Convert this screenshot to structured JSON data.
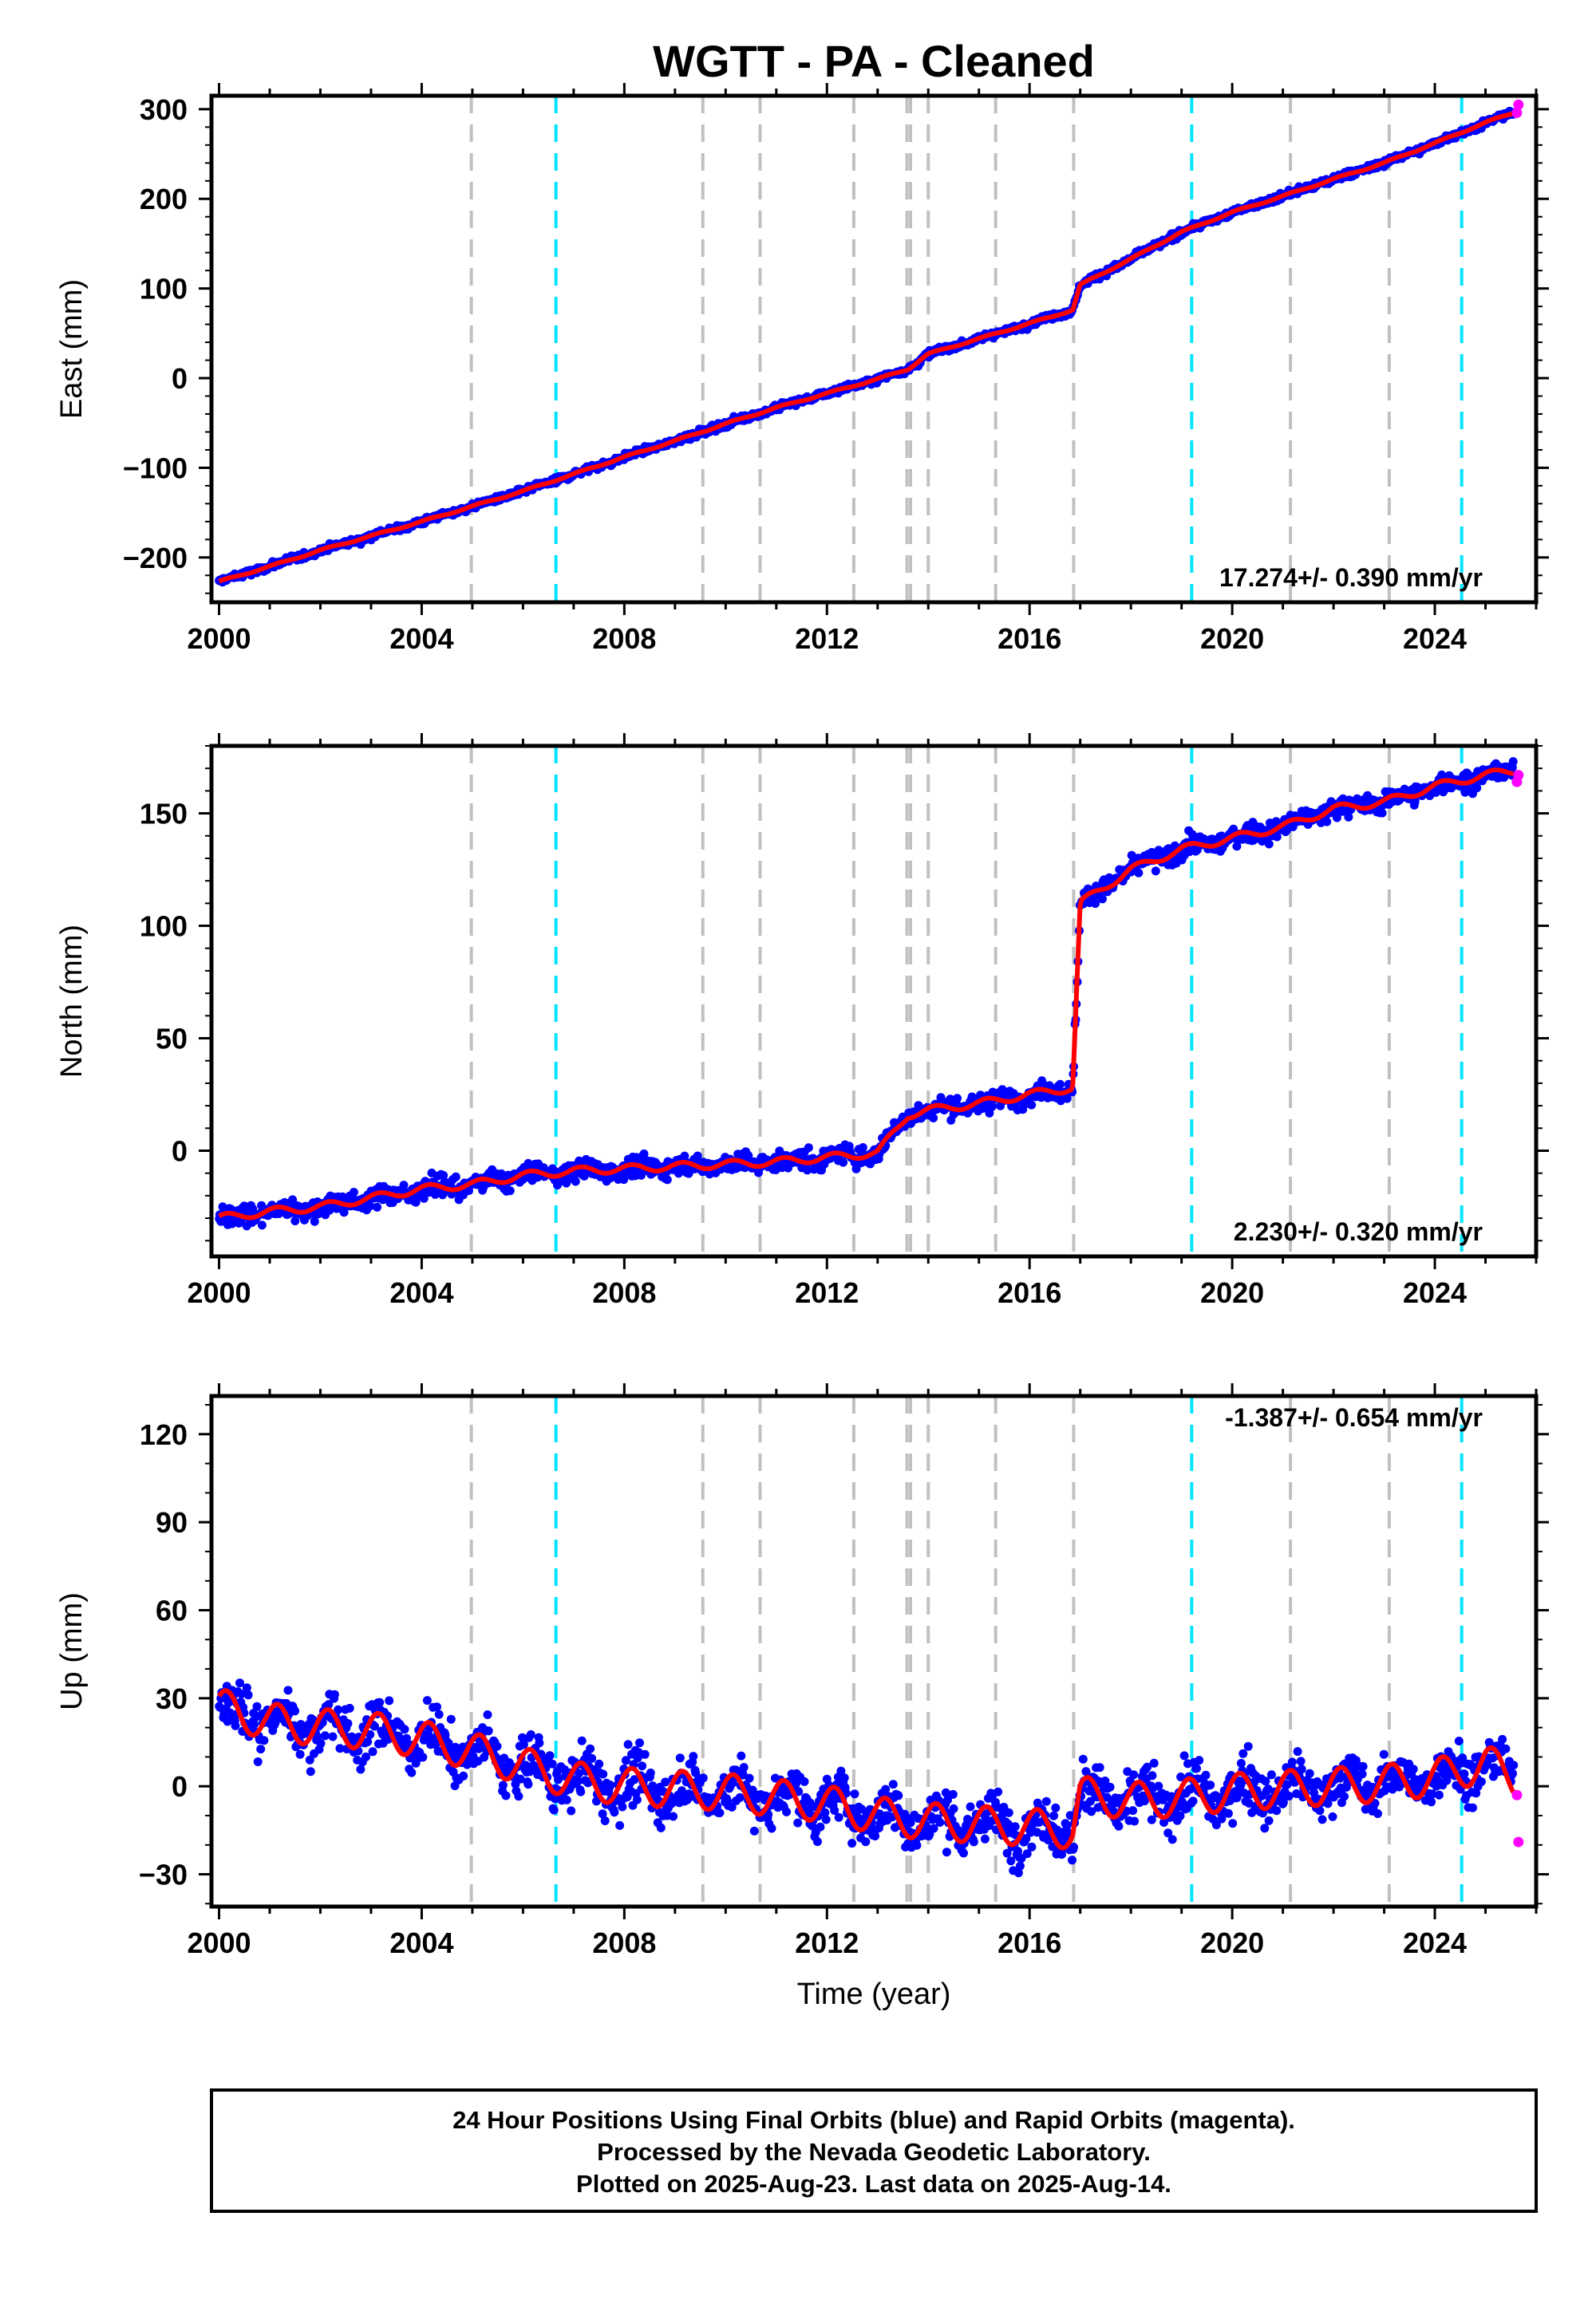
{
  "colors": {
    "final_orbits": "#0000ff",
    "rapid_orbits": "#ff00ff",
    "model": "#ff0000",
    "event_gray": "#c0c0c0",
    "event_cyan": "#00e5ff"
  },
  "chart_data": {
    "type": "scatter",
    "title": "WGTT  - PA - Cleaned",
    "x_ticks": [
      "2000",
      "2004",
      "2008",
      "2012",
      "2016",
      "2020",
      "2024"
    ],
    "xlim": [
      1999.85,
      2026.0
    ],
    "xlabel": "Time (year)",
    "event_lines_gray": [
      2004.98,
      2009.55,
      2010.68,
      2012.53,
      2013.58,
      2013.65,
      2014.0,
      2015.33,
      2016.87,
      2021.15,
      2023.1
    ],
    "event_lines_cyan": [
      2006.65,
      2019.2,
      2024.53
    ],
    "panels": [
      {
        "ylabel": "East (mm)",
        "ylim": [
          -250,
          315
        ],
        "y_ticks": [
          "300",
          "200",
          "100",
          "0",
          "−100",
          "−200"
        ],
        "rate": "17.274+/- 0.390 mm/yr",
        "final_orbits_series": [
          {
            "x": 2000.0,
            "y": -227
          },
          {
            "x": 2001.0,
            "y": -210
          },
          {
            "x": 2002.0,
            "y": -192
          },
          {
            "x": 2003.0,
            "y": -176
          },
          {
            "x": 2004.0,
            "y": -160
          },
          {
            "x": 2005.0,
            "y": -143
          },
          {
            "x": 2006.0,
            "y": -126
          },
          {
            "x": 2007.0,
            "y": -107
          },
          {
            "x": 2008.0,
            "y": -88
          },
          {
            "x": 2009.0,
            "y": -70
          },
          {
            "x": 2010.0,
            "y": -51
          },
          {
            "x": 2011.0,
            "y": -33
          },
          {
            "x": 2012.0,
            "y": -17
          },
          {
            "x": 2013.0,
            "y": -1
          },
          {
            "x": 2013.6,
            "y": 10
          },
          {
            "x": 2014.0,
            "y": 27
          },
          {
            "x": 2015.0,
            "y": 44
          },
          {
            "x": 2016.0,
            "y": 61
          },
          {
            "x": 2016.85,
            "y": 76
          },
          {
            "x": 2017.0,
            "y": 104
          },
          {
            "x": 2018.0,
            "y": 133
          },
          {
            "x": 2019.0,
            "y": 163
          },
          {
            "x": 2020.0,
            "y": 185
          },
          {
            "x": 2021.0,
            "y": 203
          },
          {
            "x": 2022.0,
            "y": 222
          },
          {
            "x": 2023.0,
            "y": 240
          },
          {
            "x": 2024.0,
            "y": 262
          },
          {
            "x": 2025.0,
            "y": 285
          },
          {
            "x": 2025.55,
            "y": 296
          }
        ],
        "rapid_orbits_series": [
          {
            "x": 2025.62,
            "y": 296
          },
          {
            "x": 2025.65,
            "y": 305
          }
        ]
      },
      {
        "ylabel": "North (mm)",
        "ylim": [
          -47,
          180
        ],
        "y_ticks": [
          "150",
          "100",
          "50",
          "0"
        ],
        "rate": "2.230+/- 0.320 mm/yr",
        "final_orbits_series": [
          {
            "x": 2000.0,
            "y": -30
          },
          {
            "x": 2001.0,
            "y": -27
          },
          {
            "x": 2002.0,
            "y": -25
          },
          {
            "x": 2003.0,
            "y": -21
          },
          {
            "x": 2004.0,
            "y": -17
          },
          {
            "x": 2005.0,
            "y": -15
          },
          {
            "x": 2006.0,
            "y": -11
          },
          {
            "x": 2007.0,
            "y": -9
          },
          {
            "x": 2008.0,
            "y": -8
          },
          {
            "x": 2009.0,
            "y": -7
          },
          {
            "x": 2010.0,
            "y": -6
          },
          {
            "x": 2011.0,
            "y": -5
          },
          {
            "x": 2012.0,
            "y": -3
          },
          {
            "x": 2013.0,
            "y": -1
          },
          {
            "x": 2013.6,
            "y": 16
          },
          {
            "x": 2014.0,
            "y": 18
          },
          {
            "x": 2015.0,
            "y": 21
          },
          {
            "x": 2016.0,
            "y": 25
          },
          {
            "x": 2016.85,
            "y": 28
          },
          {
            "x": 2017.0,
            "y": 110
          },
          {
            "x": 2018.0,
            "y": 125
          },
          {
            "x": 2019.0,
            "y": 134
          },
          {
            "x": 2020.0,
            "y": 139
          },
          {
            "x": 2021.0,
            "y": 144
          },
          {
            "x": 2022.0,
            "y": 152
          },
          {
            "x": 2023.0,
            "y": 155
          },
          {
            "x": 2024.0,
            "y": 162
          },
          {
            "x": 2025.0,
            "y": 167
          },
          {
            "x": 2025.55,
            "y": 169
          }
        ],
        "rapid_orbits_series": [
          {
            "x": 2025.62,
            "y": 164
          },
          {
            "x": 2025.65,
            "y": 167
          }
        ]
      },
      {
        "ylabel": "Up (mm)",
        "ylim": [
          -41,
          133
        ],
        "y_ticks": [
          "120",
          "90",
          "60",
          "30",
          "0",
          "−30"
        ],
        "rate": "-1.387+/- 0.654 mm/yr",
        "final_orbits_series": [
          {
            "x": 2000.0,
            "y": 27
          },
          {
            "x": 2001.0,
            "y": 22
          },
          {
            "x": 2002.0,
            "y": 20
          },
          {
            "x": 2003.0,
            "y": 19
          },
          {
            "x": 2004.0,
            "y": 16
          },
          {
            "x": 2005.0,
            "y": 12
          },
          {
            "x": 2006.0,
            "y": 7
          },
          {
            "x": 2007.0,
            "y": 2
          },
          {
            "x": 2008.0,
            "y": 0
          },
          {
            "x": 2009.0,
            "y": -1
          },
          {
            "x": 2010.0,
            "y": -2
          },
          {
            "x": 2011.0,
            "y": -4
          },
          {
            "x": 2012.0,
            "y": -6
          },
          {
            "x": 2013.0,
            "y": -10
          },
          {
            "x": 2014.0,
            "y": -12
          },
          {
            "x": 2015.0,
            "y": -13
          },
          {
            "x": 2016.0,
            "y": -14
          },
          {
            "x": 2016.85,
            "y": -15
          },
          {
            "x": 2017.0,
            "y": -3
          },
          {
            "x": 2018.0,
            "y": -5
          },
          {
            "x": 2019.0,
            "y": -4
          },
          {
            "x": 2020.0,
            "y": -2
          },
          {
            "x": 2021.0,
            "y": -1
          },
          {
            "x": 2022.0,
            "y": 0
          },
          {
            "x": 2023.0,
            "y": 1
          },
          {
            "x": 2024.0,
            "y": 3
          },
          {
            "x": 2025.0,
            "y": 8
          },
          {
            "x": 2025.55,
            "y": 3
          }
        ],
        "rapid_orbits_series": [
          {
            "x": 2025.62,
            "y": -3
          },
          {
            "x": 2025.65,
            "y": -19
          }
        ]
      }
    ]
  },
  "footer": {
    "line1": "24 Hour Positions Using Final Orbits (blue) and Rapid Orbits (magenta).",
    "line2": "Processed by the Nevada Geodetic Laboratory.",
    "line3": "Plotted on 2025-Aug-23. Last data on 2025-Aug-14."
  }
}
